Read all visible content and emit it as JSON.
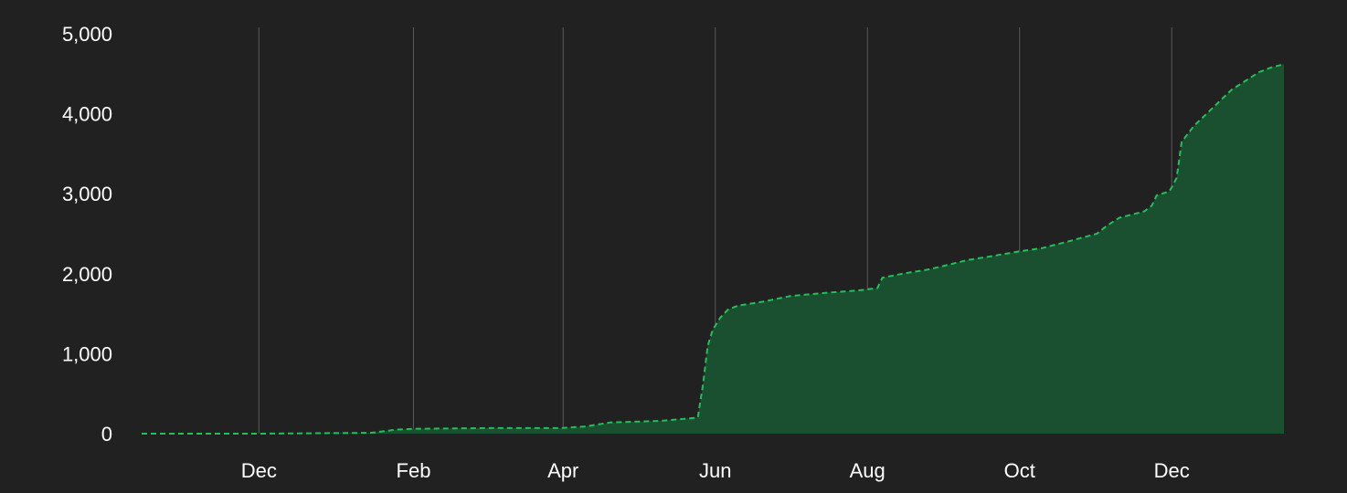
{
  "chart_data": {
    "type": "area",
    "title": "",
    "xlabel": "",
    "ylabel": "",
    "x_tick_labels": [
      "Dec",
      "Feb",
      "Apr",
      "Jun",
      "Aug",
      "Oct",
      "Dec"
    ],
    "x_tick_dates": [
      "2023-12-01",
      "2024-02-01",
      "2024-04-01",
      "2024-06-01",
      "2024-08-01",
      "2024-10-01",
      "2024-12-01"
    ],
    "y_tick_labels": [
      "0",
      "1,000",
      "2,000",
      "3,000",
      "4,000",
      "5,000"
    ],
    "y_tick_values": [
      0,
      1000,
      2000,
      3000,
      4000,
      5000
    ],
    "ylim": [
      0,
      5000
    ],
    "xlim": [
      "2023-10-15",
      "2025-01-15"
    ],
    "grid": "vertical",
    "legend": "none",
    "colors": {
      "background": "#212121",
      "line": "#1fc25a",
      "fill": "#1a4f30",
      "grid": "#5a5a5a",
      "text": "#ffffff"
    },
    "series": [
      {
        "x": [
          "2023-10-15",
          "2023-12-01",
          "2024-01-15",
          "2024-01-20",
          "2024-01-25",
          "2024-02-01",
          "2024-03-01",
          "2024-03-31",
          "2024-04-10",
          "2024-04-20",
          "2024-05-10",
          "2024-05-25",
          "2024-05-27",
          "2024-05-29",
          "2024-05-31",
          "2024-06-03",
          "2024-06-06",
          "2024-06-10",
          "2024-06-20",
          "2024-07-01",
          "2024-07-15",
          "2024-07-28",
          "2024-08-05",
          "2024-08-07",
          "2024-08-15",
          "2024-08-25",
          "2024-09-01",
          "2024-09-10",
          "2024-09-20",
          "2024-10-01",
          "2024-10-10",
          "2024-10-20",
          "2024-11-01",
          "2024-11-05",
          "2024-11-10",
          "2024-11-20",
          "2024-11-23",
          "2024-11-25",
          "2024-11-30",
          "2024-12-01",
          "2024-12-03",
          "2024-12-05",
          "2024-12-10",
          "2024-12-15",
          "2024-12-20",
          "2024-12-25",
          "2024-12-30",
          "2025-01-05",
          "2025-01-10",
          "2025-01-15"
        ],
        "y": [
          0,
          0,
          10,
          30,
          50,
          60,
          70,
          70,
          90,
          140,
          160,
          200,
          600,
          1100,
          1300,
          1450,
          1550,
          1600,
          1650,
          1720,
          1760,
          1790,
          1820,
          1950,
          2000,
          2050,
          2100,
          2170,
          2220,
          2280,
          2320,
          2400,
          2500,
          2600,
          2700,
          2780,
          2850,
          2980,
          3030,
          3080,
          3200,
          3650,
          3850,
          4000,
          4150,
          4300,
          4400,
          4520,
          4580,
          4620
        ]
      }
    ]
  }
}
